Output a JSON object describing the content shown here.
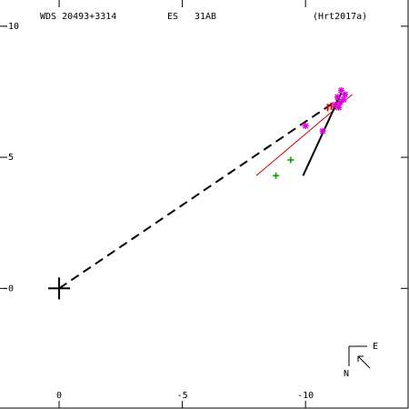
{
  "header": {
    "wds_id": "WDS 20493+3314",
    "discoverer": "ES",
    "pair": "31AB",
    "orbit_ref": "(Hrt2017a)"
  },
  "compass": {
    "east_label": "E",
    "north_label": "N"
  },
  "colors": {
    "background": "#ffffff",
    "axes": "#000000",
    "orbit": "#000000",
    "fit_line": "#cc0000",
    "magenta_obs": "#e000e0",
    "green_obs": "#00a000",
    "red_obs": "#e00000"
  },
  "chart_data": {
    "type": "scatter",
    "xlim": [
      2.4,
      -14.2
    ],
    "ylim": [
      -4.6,
      11.0
    ],
    "x_ticks": [
      {
        "value": -10,
        "label": "-10"
      },
      {
        "value": -5,
        "label": "-5"
      },
      {
        "value": 0,
        "label": "0"
      }
    ],
    "y_ticks": [
      {
        "value": 10,
        "label": "-10"
      },
      {
        "value": 5,
        "label": "-5"
      },
      {
        "value": 0,
        "label": "-0"
      }
    ],
    "primary": {
      "x": 0,
      "y": 0
    },
    "orbit_arc": [
      [
        -11.45,
        7.45
      ],
      [
        -9.9,
        4.3
      ]
    ],
    "node_line": [
      [
        0,
        0
      ],
      [
        -11.4,
        7.25
      ]
    ],
    "fit_line": [
      [
        -11.9,
        7.4
      ],
      [
        -8.0,
        4.3
      ]
    ],
    "observations": [
      {
        "x": -11.45,
        "y": 7.55,
        "marker": "star",
        "color": "magenta_obs"
      },
      {
        "x": -11.6,
        "y": 7.4,
        "marker": "star",
        "color": "magenta_obs"
      },
      {
        "x": -11.3,
        "y": 7.3,
        "marker": "star",
        "color": "magenta_obs"
      },
      {
        "x": -11.55,
        "y": 7.2,
        "marker": "star",
        "color": "magenta_obs"
      },
      {
        "x": -11.4,
        "y": 7.1,
        "marker": "star",
        "color": "magenta_obs"
      },
      {
        "x": -11.2,
        "y": 7.0,
        "marker": "star",
        "color": "magenta_obs"
      },
      {
        "x": -11.35,
        "y": 6.9,
        "marker": "star",
        "color": "magenta_obs"
      },
      {
        "x": -10.0,
        "y": 6.2,
        "marker": "star",
        "color": "magenta_obs"
      },
      {
        "x": -10.7,
        "y": 6.0,
        "marker": "star",
        "color": "magenta_obs"
      },
      {
        "x": -11.05,
        "y": 6.95,
        "marker": "bar",
        "color": "red_obs"
      },
      {
        "x": -10.9,
        "y": 6.9,
        "marker": "bar",
        "color": "red_obs"
      },
      {
        "x": -9.4,
        "y": 4.9,
        "marker": "plus",
        "color": "green_obs"
      },
      {
        "x": -8.8,
        "y": 4.3,
        "marker": "plus",
        "color": "green_obs"
      }
    ]
  }
}
